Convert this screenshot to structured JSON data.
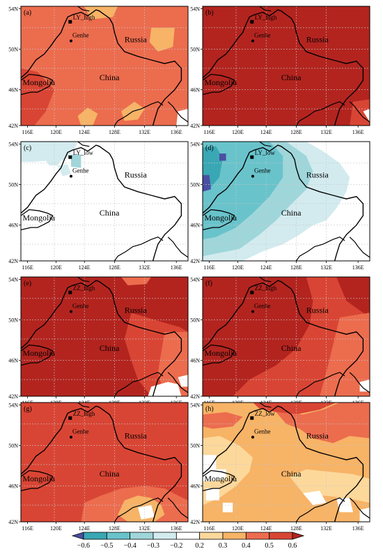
{
  "colors": {
    "-0.6": "#4a4fa3",
    "-0.5": "#3aa7b4",
    "-0.4": "#69c3cb",
    "-0.3": "#9fd6da",
    "-0.2": "#d3ebee",
    "0.2": "#ffffff",
    "0.3": "#fdd89b",
    "0.4": "#f7b366",
    "0.5": "#ec6c4e",
    "0.6": "#d94534",
    "0.7": "#b3241f"
  },
  "axes": {
    "lat_ticks": [
      "54N",
      "50N",
      "46N",
      "42N"
    ],
    "lon_ticks": [
      "116E",
      "120E",
      "124E",
      "128E",
      "132E",
      "136E"
    ]
  },
  "places": {
    "genhe": "Genhe",
    "russia": "Russia",
    "china": "China",
    "mongolia": "Mongolia"
  },
  "panels": [
    {
      "id": "a",
      "label": "(a)",
      "station": "LY_high",
      "base": "0.5"
    },
    {
      "id": "b",
      "label": "(b)",
      "station": "LY_high",
      "base": "0.7"
    },
    {
      "id": "c",
      "label": "(c)",
      "station": "LY_low",
      "base": "0.2"
    },
    {
      "id": "d",
      "label": "(d)",
      "station": "LY_low",
      "base": "0.2"
    },
    {
      "id": "e",
      "label": "(e)",
      "station": "ZZ_high",
      "base": "0.7"
    },
    {
      "id": "f",
      "label": "(f)",
      "station": "ZZ_high",
      "base": "0.7"
    },
    {
      "id": "g",
      "label": "(g)",
      "station": "ZZ_high",
      "base": "0.6"
    },
    {
      "id": "h",
      "label": "(h)",
      "station": "ZZ_low",
      "base": "0.4"
    }
  ],
  "colorbar": {
    "type": "legend",
    "labels": [
      "−0.6",
      "−0.5",
      "−0.4",
      "−0.3",
      "−0.2",
      "0.2",
      "0.3",
      "0.4",
      "0.5",
      "0.6"
    ],
    "bins": [
      "-0.6",
      "-0.5",
      "-0.4",
      "-0.3",
      "-0.2",
      "0.2",
      "0.3",
      "0.4",
      "0.5",
      "0.6",
      "0.7"
    ]
  }
}
